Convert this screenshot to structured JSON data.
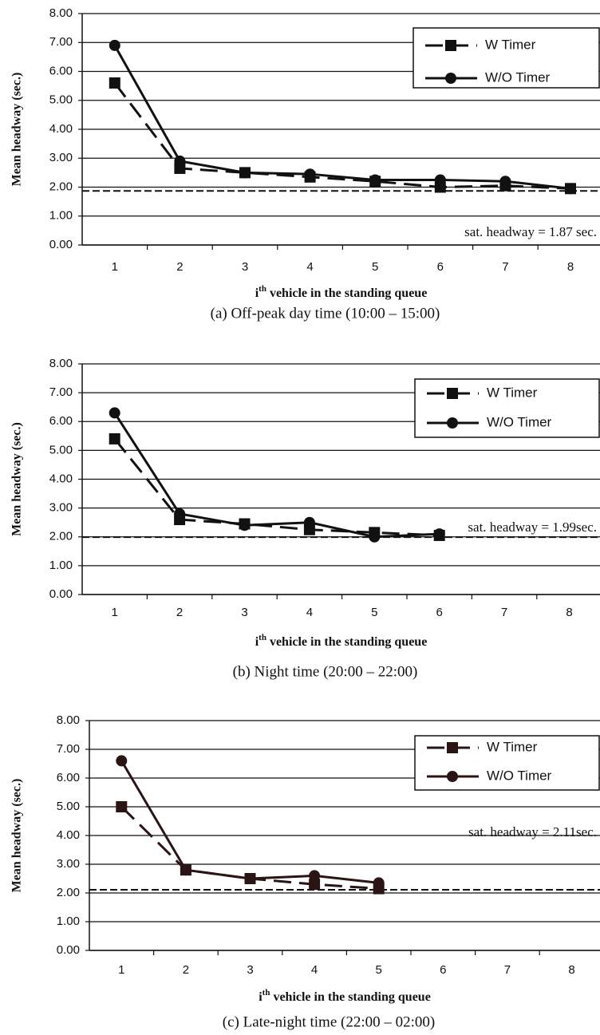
{
  "chart_data": [
    {
      "type": "line",
      "y_label": "Mean headway (sec.)",
      "x_label": [
        "i",
        "th",
        " vehicle in the standing queue"
      ],
      "caption": "(a) Off-peak day time (10:00 – 15:00)",
      "categories": [
        "1",
        "2",
        "3",
        "4",
        "5",
        "6",
        "7",
        "8"
      ],
      "series": [
        {
          "name": "W Timer",
          "color": "#111111",
          "style": "dashed",
          "marker": "square",
          "values": [
            5.6,
            2.65,
            2.5,
            2.35,
            2.2,
            2.0,
            2.05,
            1.95
          ]
        },
        {
          "name": "W/O Timer",
          "color": "#111111",
          "style": "solid",
          "marker": "circle",
          "values": [
            6.9,
            2.9,
            2.5,
            2.45,
            2.25,
            2.25,
            2.2,
            1.95
          ]
        }
      ],
      "reference_line": 1.87,
      "annotation": "sat. headway = 1.87 sec.",
      "ylim": [
        0,
        8
      ],
      "yticks": [
        {
          "value": 0,
          "label": "0.00"
        },
        {
          "value": 1,
          "label": "1.00"
        },
        {
          "value": 2,
          "label": "2.00"
        },
        {
          "value": 3,
          "label": "3.00"
        },
        {
          "value": 4,
          "label": "4.00"
        },
        {
          "value": 5,
          "label": "5.00"
        },
        {
          "value": 6,
          "label": "6.00"
        },
        {
          "value": 7,
          "label": "7.00"
        },
        {
          "value": 8,
          "label": "8.00"
        }
      ],
      "grid": true,
      "legend": "upper right"
    },
    {
      "type": "line",
      "y_label": "Mean headway (sec.)",
      "x_label": [
        "i",
        "th",
        " vehicle in the standing queue"
      ],
      "caption": "(b) Night time (20:00 – 22:00)",
      "categories": [
        "1",
        "2",
        "3",
        "4",
        "5",
        "6",
        "7",
        "8"
      ],
      "series": [
        {
          "name": "W Timer",
          "color": "#111111",
          "style": "dashed",
          "marker": "square",
          "values": [
            5.4,
            2.6,
            2.45,
            2.25,
            2.15,
            2.05,
            null,
            null
          ]
        },
        {
          "name": "W/O Timer",
          "color": "#111111",
          "style": "solid",
          "marker": "circle",
          "values": [
            6.3,
            2.8,
            2.4,
            2.5,
            2.0,
            2.1,
            null,
            null
          ]
        }
      ],
      "reference_line": 1.99,
      "annotation": "sat. headway = 1.99sec.",
      "ylim": [
        0,
        8
      ],
      "yticks": [
        {
          "value": 0,
          "label": "0.00"
        },
        {
          "value": 1,
          "label": "1.00"
        },
        {
          "value": 2,
          "label": "2.00"
        },
        {
          "value": 3,
          "label": "3.00"
        },
        {
          "value": 4,
          "label": "4.00"
        },
        {
          "value": 5,
          "label": "5.00"
        },
        {
          "value": 6,
          "label": "6.00"
        },
        {
          "value": 7,
          "label": "7.00"
        },
        {
          "value": 8,
          "label": "8.00"
        }
      ],
      "grid": true,
      "legend": "upper right"
    },
    {
      "type": "line",
      "y_label": "Mean headway (sec.)",
      "x_label": [
        "i",
        "th",
        " vehicle in the standing queue"
      ],
      "caption": "(c) Late-night time (22:00 – 02:00)",
      "categories": [
        "1",
        "2",
        "3",
        "4",
        "5",
        "6",
        "7",
        "8"
      ],
      "series": [
        {
          "name": "W Timer",
          "color": "#2a1414",
          "style": "dashed",
          "marker": "square",
          "values": [
            5.0,
            2.8,
            2.5,
            2.3,
            2.15,
            null,
            null,
            null
          ]
        },
        {
          "name": "W/O Timer",
          "color": "#2a1414",
          "style": "solid",
          "marker": "circle",
          "values": [
            6.6,
            2.8,
            2.5,
            2.6,
            2.35,
            null,
            null,
            null
          ]
        }
      ],
      "reference_line": 2.11,
      "annotation": "sat. headway = 2.11sec.",
      "ylim": [
        0,
        8
      ],
      "yticks": [
        {
          "value": 0,
          "label": "0.00"
        },
        {
          "value": 1,
          "label": "1.00"
        },
        {
          "value": 2,
          "label": "2.00"
        },
        {
          "value": 3,
          "label": "3.00"
        },
        {
          "value": 4,
          "label": "4.00"
        },
        {
          "value": 5,
          "label": "5.00"
        },
        {
          "value": 6,
          "label": "6.00"
        },
        {
          "value": 7,
          "label": "7.00"
        },
        {
          "value": 8,
          "label": "8.00"
        }
      ],
      "grid": true,
      "legend": "upper right"
    }
  ]
}
